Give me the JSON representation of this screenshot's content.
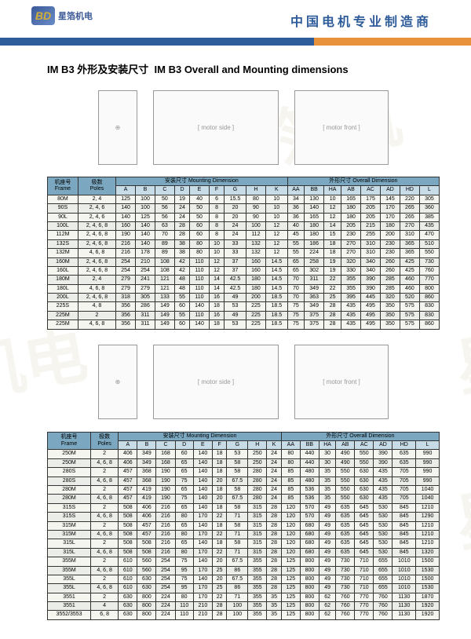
{
  "header": {
    "logo_text": "星箔机电",
    "title": "中国电机专业制造商"
  },
  "section_title_cn": "IM B3 外形及安装尺寸",
  "section_title_en": "IM B3 Overall and Mounting dimensions",
  "table1": {
    "headers": {
      "frame": "机座号\nFrame",
      "poles": "极数\nPoles",
      "mounting": "安装尺寸 Mounting Dimension",
      "overall": "外形尺寸 Overall Dimension",
      "cols": [
        "A",
        "B",
        "C",
        "D",
        "E",
        "F",
        "G",
        "H",
        "K",
        "AA",
        "BB",
        "HA",
        "AB",
        "AC",
        "AD",
        "HD",
        "L"
      ]
    },
    "rows": [
      [
        "80M",
        "2, 4",
        "125",
        "100",
        "50",
        "19",
        "40",
        "6",
        "15.5",
        "80",
        "10",
        "34",
        "130",
        "10",
        "165",
        "175",
        "145",
        "220",
        "305"
      ],
      [
        "90S",
        "2, 4, 6",
        "140",
        "100",
        "56",
        "24",
        "50",
        "8",
        "20",
        "90",
        "10",
        "36",
        "140",
        "12",
        "180",
        "205",
        "170",
        "265",
        "360"
      ],
      [
        "90L",
        "2, 4, 6",
        "140",
        "125",
        "56",
        "24",
        "50",
        "8",
        "20",
        "90",
        "10",
        "36",
        "165",
        "12",
        "180",
        "205",
        "170",
        "265",
        "385"
      ],
      [
        "100L",
        "2, 4, 6, 8",
        "160",
        "140",
        "63",
        "28",
        "60",
        "8",
        "24",
        "100",
        "12",
        "40",
        "180",
        "14",
        "205",
        "215",
        "180",
        "270",
        "435"
      ],
      [
        "112M",
        "2, 4, 6, 8",
        "190",
        "140",
        "70",
        "28",
        "60",
        "8",
        "24",
        "112",
        "12",
        "45",
        "180",
        "15",
        "230",
        "255",
        "200",
        "310",
        "470"
      ],
      [
        "132S",
        "2, 4, 6, 8",
        "216",
        "140",
        "89",
        "38",
        "80",
        "10",
        "33",
        "132",
        "12",
        "55",
        "186",
        "18",
        "270",
        "310",
        "230",
        "365",
        "510"
      ],
      [
        "132M",
        "4, 6, 8",
        "216",
        "178",
        "89",
        "38",
        "80",
        "10",
        "33",
        "132",
        "12",
        "55",
        "224",
        "18",
        "270",
        "310",
        "230",
        "365",
        "550"
      ],
      [
        "160M",
        "2, 4, 6, 8",
        "254",
        "210",
        "108",
        "42",
        "110",
        "12",
        "37",
        "160",
        "14.5",
        "65",
        "258",
        "19",
        "320",
        "340",
        "260",
        "425",
        "730"
      ],
      [
        "160L",
        "2, 4, 6, 8",
        "254",
        "254",
        "108",
        "42",
        "110",
        "12",
        "37",
        "160",
        "14.5",
        "65",
        "302",
        "19",
        "330",
        "340",
        "260",
        "425",
        "760"
      ],
      [
        "180M",
        "2, 4",
        "279",
        "241",
        "121",
        "48",
        "110",
        "14",
        "42.5",
        "180",
        "14.5",
        "70",
        "311",
        "22",
        "355",
        "390",
        "285",
        "460",
        "770"
      ],
      [
        "180L",
        "4, 6, 8",
        "279",
        "279",
        "121",
        "48",
        "110",
        "14",
        "42.5",
        "180",
        "14.5",
        "70",
        "349",
        "22",
        "355",
        "390",
        "285",
        "460",
        "800"
      ],
      [
        "200L",
        "2, 4, 6, 8",
        "318",
        "305",
        "133",
        "55",
        "110",
        "16",
        "49",
        "200",
        "18.5",
        "70",
        "363",
        "25",
        "395",
        "445",
        "320",
        "520",
        "860"
      ],
      [
        "225S",
        "4, 8",
        "356",
        "286",
        "149",
        "60",
        "140",
        "18",
        "53",
        "225",
        "18.5",
        "75",
        "349",
        "28",
        "435",
        "495",
        "350",
        "575",
        "830"
      ],
      [
        "225M",
        "2",
        "356",
        "311",
        "149",
        "55",
        "110",
        "16",
        "49",
        "225",
        "18.5",
        "75",
        "375",
        "28",
        "435",
        "495",
        "350",
        "575",
        "830"
      ],
      [
        "225M",
        "4, 6, 8",
        "356",
        "311",
        "149",
        "60",
        "140",
        "18",
        "53",
        "225",
        "18.5",
        "75",
        "375",
        "28",
        "435",
        "495",
        "350",
        "575",
        "860"
      ]
    ]
  },
  "table2": {
    "headers": {
      "frame": "机座号\nFrame",
      "poles": "极数\nPoles",
      "mounting": "安装尺寸 Mounting Dimension",
      "overall": "外形尺寸 Overall Dimension",
      "cols": [
        "A",
        "B",
        "C",
        "D",
        "E",
        "F",
        "G",
        "H",
        "K",
        "AA",
        "BB",
        "HA",
        "AB",
        "AC",
        "AD",
        "HD",
        "L"
      ]
    },
    "rows": [
      [
        "250M",
        "2",
        "406",
        "349",
        "168",
        "60",
        "140",
        "18",
        "53",
        "250",
        "24",
        "80",
        "440",
        "30",
        "490",
        "550",
        "390",
        "635",
        "990"
      ],
      [
        "250M",
        "4, 6, 8",
        "406",
        "349",
        "168",
        "65",
        "140",
        "18",
        "58",
        "250",
        "24",
        "80",
        "440",
        "30",
        "490",
        "550",
        "390",
        "635",
        "990"
      ],
      [
        "280S",
        "2",
        "457",
        "368",
        "190",
        "65",
        "140",
        "18",
        "58",
        "280",
        "24",
        "85",
        "480",
        "35",
        "550",
        "630",
        "435",
        "705",
        "990"
      ],
      [
        "280S",
        "4, 6, 8",
        "457",
        "368",
        "190",
        "75",
        "140",
        "20",
        "67.5",
        "280",
        "24",
        "85",
        "480",
        "35",
        "550",
        "630",
        "435",
        "705",
        "990"
      ],
      [
        "280M",
        "2",
        "457",
        "419",
        "190",
        "65",
        "140",
        "18",
        "58",
        "280",
        "24",
        "85",
        "536",
        "35",
        "550",
        "630",
        "435",
        "705",
        "1040"
      ],
      [
        "280M",
        "4, 6, 8",
        "457",
        "419",
        "190",
        "75",
        "140",
        "20",
        "67.5",
        "280",
        "24",
        "85",
        "536",
        "35",
        "550",
        "630",
        "435",
        "705",
        "1040"
      ],
      [
        "315S",
        "2",
        "508",
        "406",
        "216",
        "65",
        "140",
        "18",
        "58",
        "315",
        "28",
        "120",
        "570",
        "49",
        "635",
        "645",
        "530",
        "845",
        "1210"
      ],
      [
        "315S",
        "4, 6, 8",
        "508",
        "406",
        "216",
        "80",
        "170",
        "22",
        "71",
        "315",
        "28",
        "120",
        "570",
        "49",
        "635",
        "645",
        "530",
        "845",
        "1290"
      ],
      [
        "315M",
        "2",
        "508",
        "457",
        "216",
        "65",
        "140",
        "18",
        "58",
        "315",
        "28",
        "120",
        "680",
        "49",
        "635",
        "645",
        "530",
        "845",
        "1210"
      ],
      [
        "315M",
        "4, 6, 8",
        "508",
        "457",
        "216",
        "80",
        "170",
        "22",
        "71",
        "315",
        "28",
        "120",
        "680",
        "49",
        "635",
        "645",
        "530",
        "845",
        "1210"
      ],
      [
        "315L",
        "2",
        "508",
        "508",
        "216",
        "65",
        "140",
        "18",
        "58",
        "315",
        "28",
        "120",
        "680",
        "49",
        "635",
        "645",
        "530",
        "845",
        "1210"
      ],
      [
        "315L",
        "4, 6, 8",
        "508",
        "508",
        "216",
        "80",
        "170",
        "22",
        "71",
        "315",
        "28",
        "120",
        "680",
        "49",
        "635",
        "645",
        "530",
        "845",
        "1320"
      ],
      [
        "355M",
        "2",
        "610",
        "560",
        "254",
        "75",
        "140",
        "20",
        "67.5",
        "355",
        "28",
        "125",
        "800",
        "49",
        "730",
        "710",
        "655",
        "1010",
        "1500"
      ],
      [
        "355M",
        "4, 6, 8",
        "610",
        "560",
        "254",
        "95",
        "170",
        "25",
        "86",
        "355",
        "28",
        "125",
        "800",
        "49",
        "730",
        "710",
        "655",
        "1010",
        "1530"
      ],
      [
        "355L",
        "2",
        "610",
        "630",
        "254",
        "75",
        "140",
        "20",
        "67.5",
        "355",
        "28",
        "125",
        "800",
        "49",
        "730",
        "710",
        "655",
        "1010",
        "1500"
      ],
      [
        "355L",
        "4, 6, 8",
        "610",
        "630",
        "254",
        "95",
        "170",
        "25",
        "86",
        "355",
        "28",
        "125",
        "800",
        "49",
        "730",
        "710",
        "655",
        "1010",
        "1530"
      ],
      [
        "3551",
        "2",
        "630",
        "800",
        "224",
        "80",
        "170",
        "22",
        "71",
        "355",
        "35",
        "125",
        "800",
        "62",
        "760",
        "770",
        "760",
        "1130",
        "1870"
      ],
      [
        "3551",
        "4",
        "630",
        "800",
        "224",
        "110",
        "210",
        "28",
        "100",
        "355",
        "35",
        "125",
        "800",
        "62",
        "760",
        "770",
        "760",
        "1130",
        "1920"
      ],
      [
        "3552/3553",
        "6, 8",
        "630",
        "800",
        "224",
        "110",
        "210",
        "28",
        "100",
        "355",
        "35",
        "125",
        "800",
        "62",
        "760",
        "770",
        "760",
        "1130",
        "1920"
      ]
    ]
  }
}
